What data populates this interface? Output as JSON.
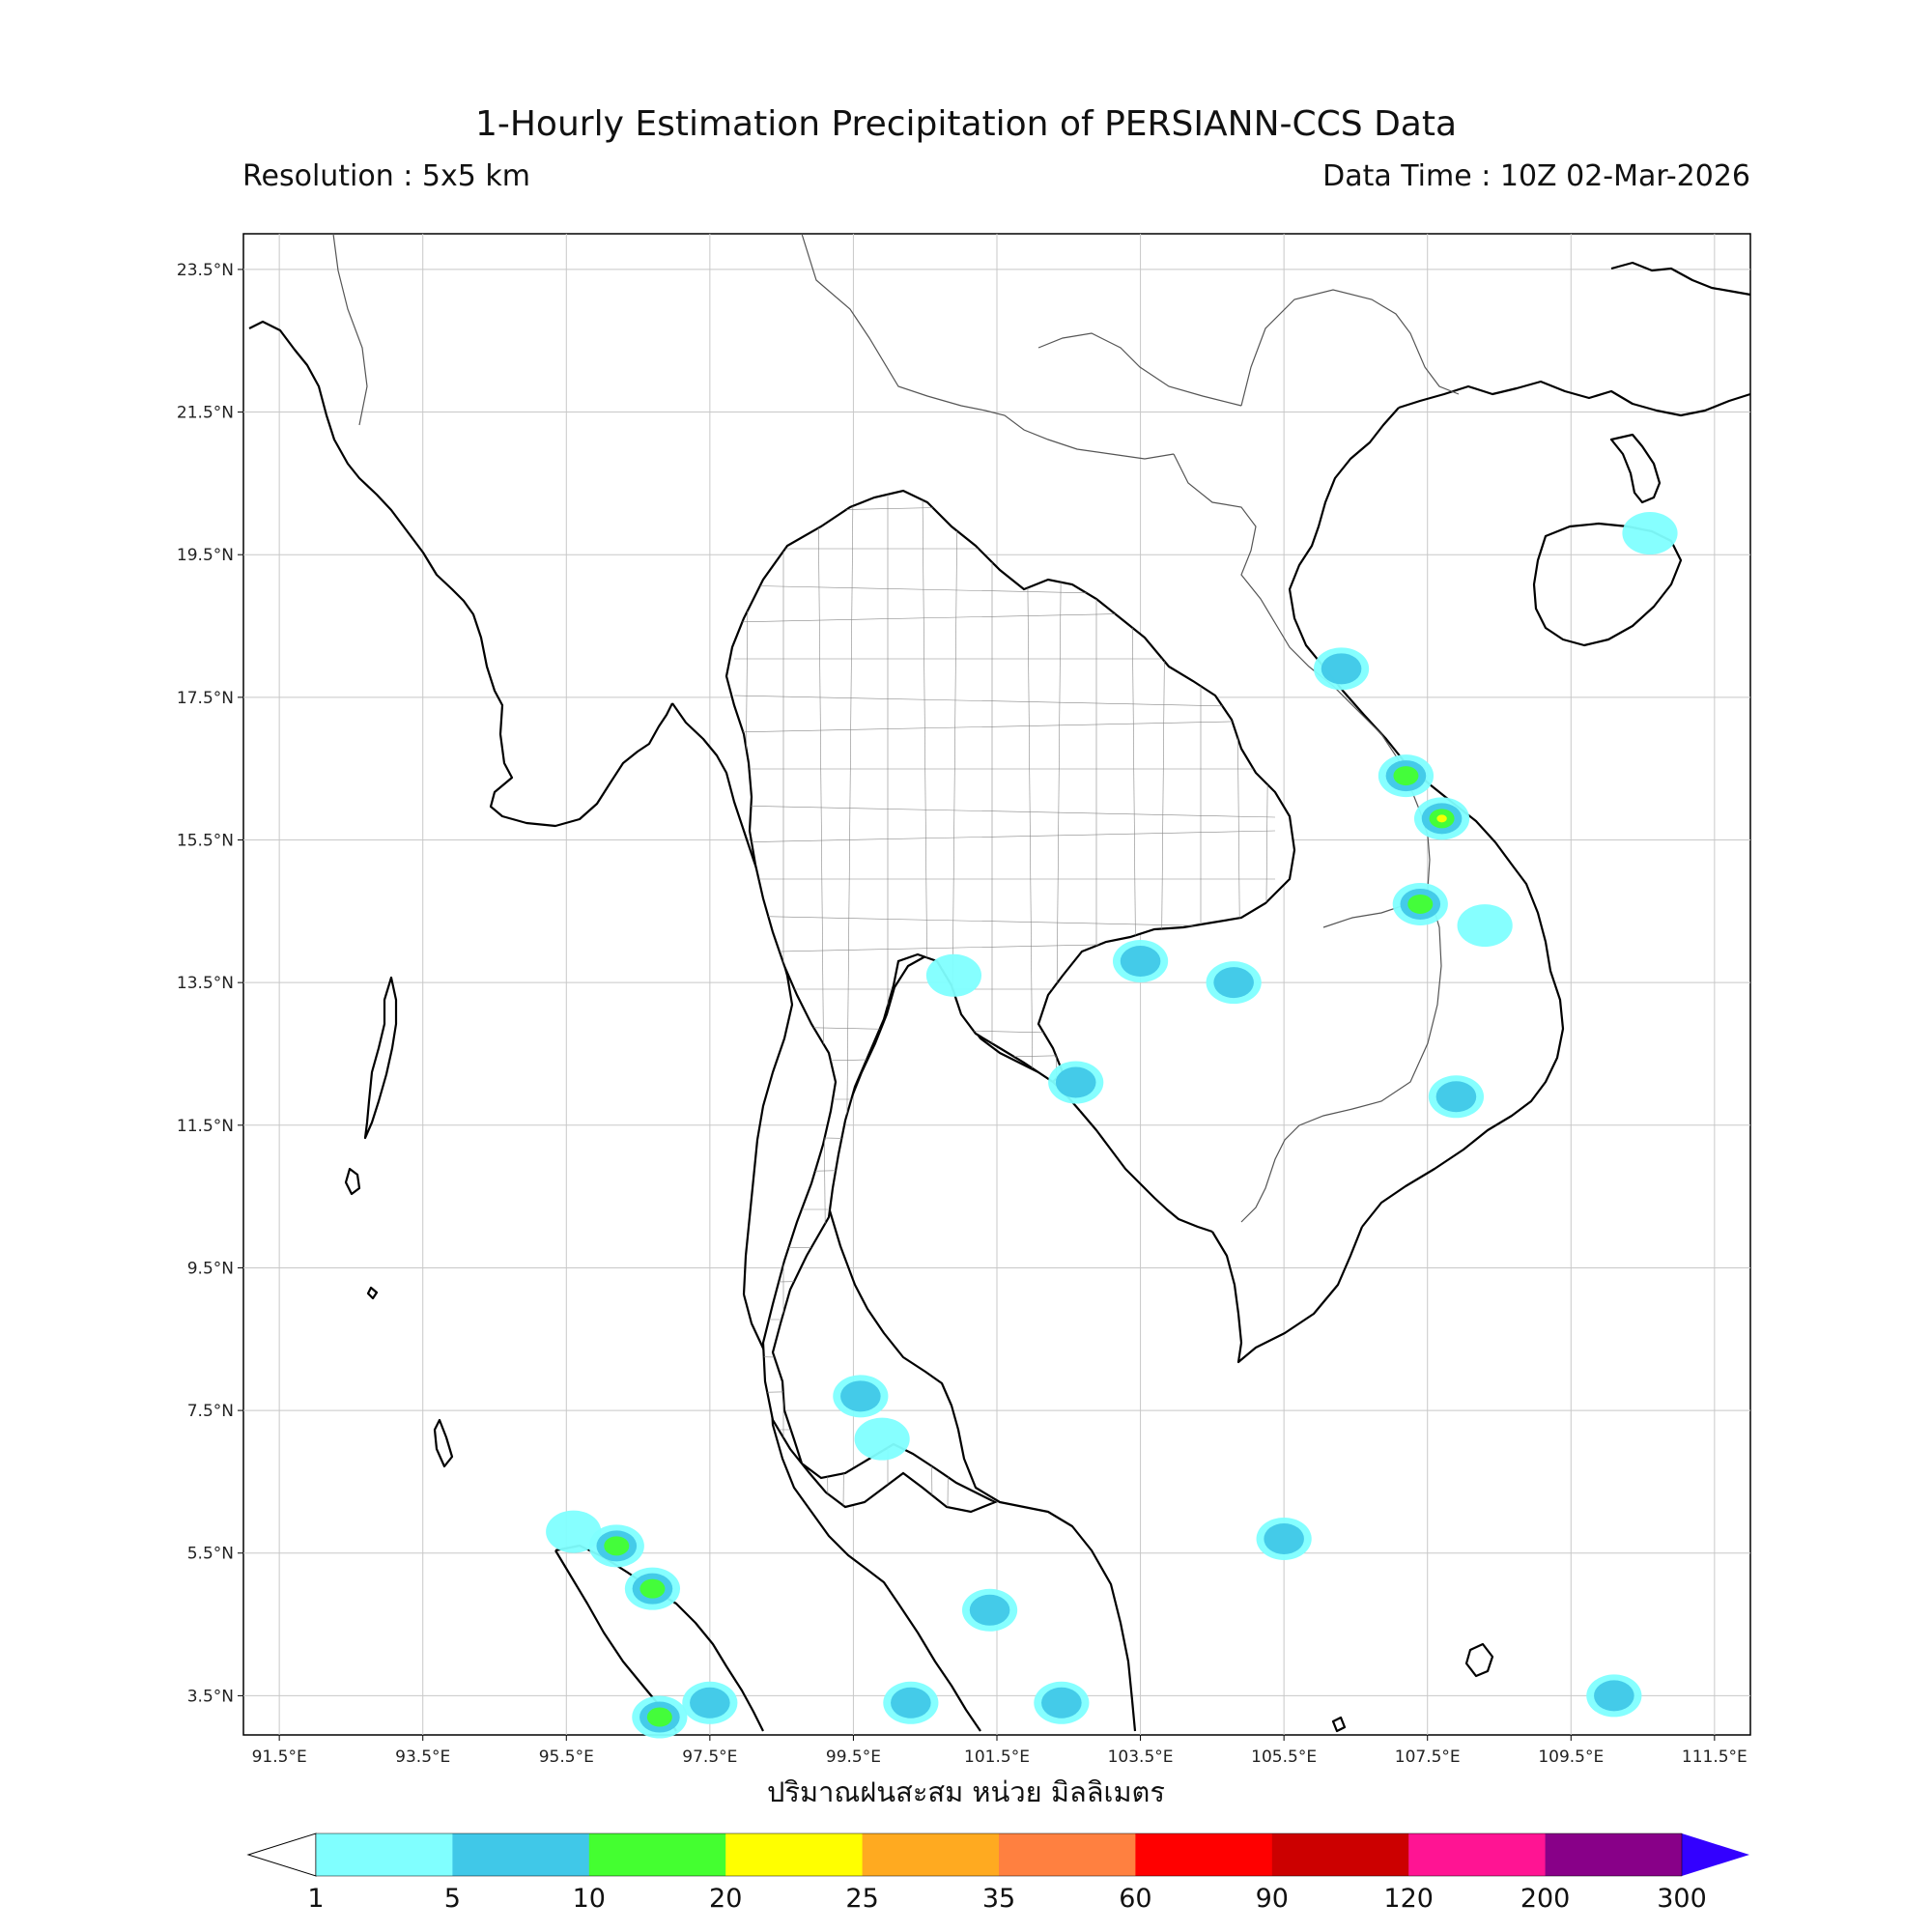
{
  "header": {
    "title": "1-Hourly Estimation Precipitation of PERSIANN-CCS Data",
    "resolution": "Resolution : 5x5 km",
    "data_time": "Data Time : 10Z 02-Mar-2026"
  },
  "map": {
    "lon_range": [
      91.0,
      112.0
    ],
    "lat_range": [
      2.95,
      24.0
    ],
    "lon_ticks": [
      "91.5°E",
      "93.5°E",
      "95.5°E",
      "97.5°E",
      "99.5°E",
      "101.5°E",
      "103.5°E",
      "105.5°E",
      "107.5°E",
      "109.5°E",
      "111.5°E"
    ],
    "lat_ticks": [
      "23.5°N",
      "21.5°N",
      "19.5°N",
      "17.5°N",
      "15.5°N",
      "13.5°N",
      "11.5°N",
      "9.5°N",
      "7.5°N",
      "5.5°N",
      "3.5°N"
    ],
    "gridlines": true,
    "x_axis_label": "ปริมาณฝนสะสม หน่วย มิลลิเมตร",
    "rain_cells": [
      {
        "lon": 106.3,
        "lat": 17.9,
        "level": 2
      },
      {
        "lon": 107.2,
        "lat": 16.4,
        "level": 3
      },
      {
        "lon": 107.7,
        "lat": 15.8,
        "level": 4
      },
      {
        "lon": 107.4,
        "lat": 14.6,
        "level": 3
      },
      {
        "lon": 108.3,
        "lat": 14.3,
        "level": 1
      },
      {
        "lon": 103.5,
        "lat": 13.8,
        "level": 2
      },
      {
        "lon": 104.8,
        "lat": 13.5,
        "level": 2
      },
      {
        "lon": 102.6,
        "lat": 12.1,
        "level": 2
      },
      {
        "lon": 107.9,
        "lat": 11.9,
        "level": 2
      },
      {
        "lon": 100.9,
        "lat": 13.6,
        "level": 1
      },
      {
        "lon": 99.6,
        "lat": 7.7,
        "level": 2
      },
      {
        "lon": 99.9,
        "lat": 7.1,
        "level": 1
      },
      {
        "lon": 100.3,
        "lat": 3.4,
        "level": 2
      },
      {
        "lon": 102.4,
        "lat": 3.4,
        "level": 2
      },
      {
        "lon": 101.4,
        "lat": 4.7,
        "level": 2
      },
      {
        "lon": 97.5,
        "lat": 3.4,
        "level": 2
      },
      {
        "lon": 96.8,
        "lat": 3.2,
        "level": 3
      },
      {
        "lon": 95.6,
        "lat": 5.8,
        "level": 1
      },
      {
        "lon": 96.2,
        "lat": 5.6,
        "level": 3
      },
      {
        "lon": 96.7,
        "lat": 5.0,
        "level": 3
      },
      {
        "lon": 110.1,
        "lat": 3.5,
        "level": 2
      },
      {
        "lon": 105.5,
        "lat": 5.7,
        "level": 2
      },
      {
        "lon": 110.6,
        "lat": 19.8,
        "level": 1
      }
    ]
  },
  "colorbar": {
    "colors": [
      "#80ffff",
      "#40c8e8",
      "#44ff30",
      "#ffff00",
      "#ffaa20",
      "#ff8040",
      "#ff0000",
      "#cc0000",
      "#ff1493",
      "#880088",
      "#3300ff"
    ],
    "under_color": "#ffffff",
    "tick_labels": [
      "1",
      "5",
      "10",
      "20",
      "25",
      "35",
      "60",
      "90",
      "120",
      "200",
      "300"
    ]
  }
}
